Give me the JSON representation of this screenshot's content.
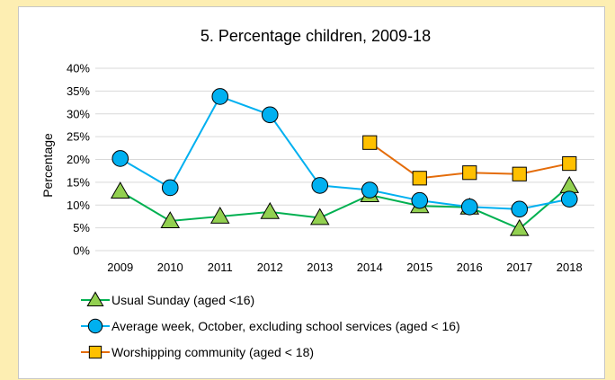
{
  "chart_data": {
    "type": "line",
    "title": "5. Percentage children, 2009-18",
    "xlabel": "",
    "ylabel": "Percentage",
    "x": [
      "2009",
      "2010",
      "2011",
      "2012",
      "2013",
      "2014",
      "2015",
      "2016",
      "2017",
      "2018"
    ],
    "ylim": [
      0,
      40
    ],
    "yticks": [
      "0%",
      "5%",
      "10%",
      "15%",
      "20%",
      "25%",
      "30%",
      "35%",
      "40%"
    ],
    "grid": true,
    "legend_position": "bottom",
    "series": [
      {
        "name": "Usual Sunday (aged <16)",
        "color": "#00b050",
        "marker": "triangle",
        "marker_color": "#92d050",
        "values": [
          13.0,
          6.5,
          7.5,
          8.5,
          7.2,
          12.2,
          9.8,
          9.5,
          4.8,
          14.2
        ]
      },
      {
        "name": "Average week, October, excluding school services (aged < 16)",
        "color": "#00b0f0",
        "marker": "circle",
        "marker_color": "#00b0f0",
        "values": [
          20.2,
          13.8,
          33.8,
          29.8,
          14.3,
          13.3,
          11.0,
          9.6,
          9.1,
          11.3
        ]
      },
      {
        "name": "Worshipping community (aged < 18)",
        "color": "#e46c0a",
        "marker": "square",
        "marker_color": "#ffc000",
        "values": [
          null,
          null,
          null,
          null,
          null,
          23.7,
          15.9,
          17.1,
          16.8,
          19.1
        ]
      }
    ]
  }
}
